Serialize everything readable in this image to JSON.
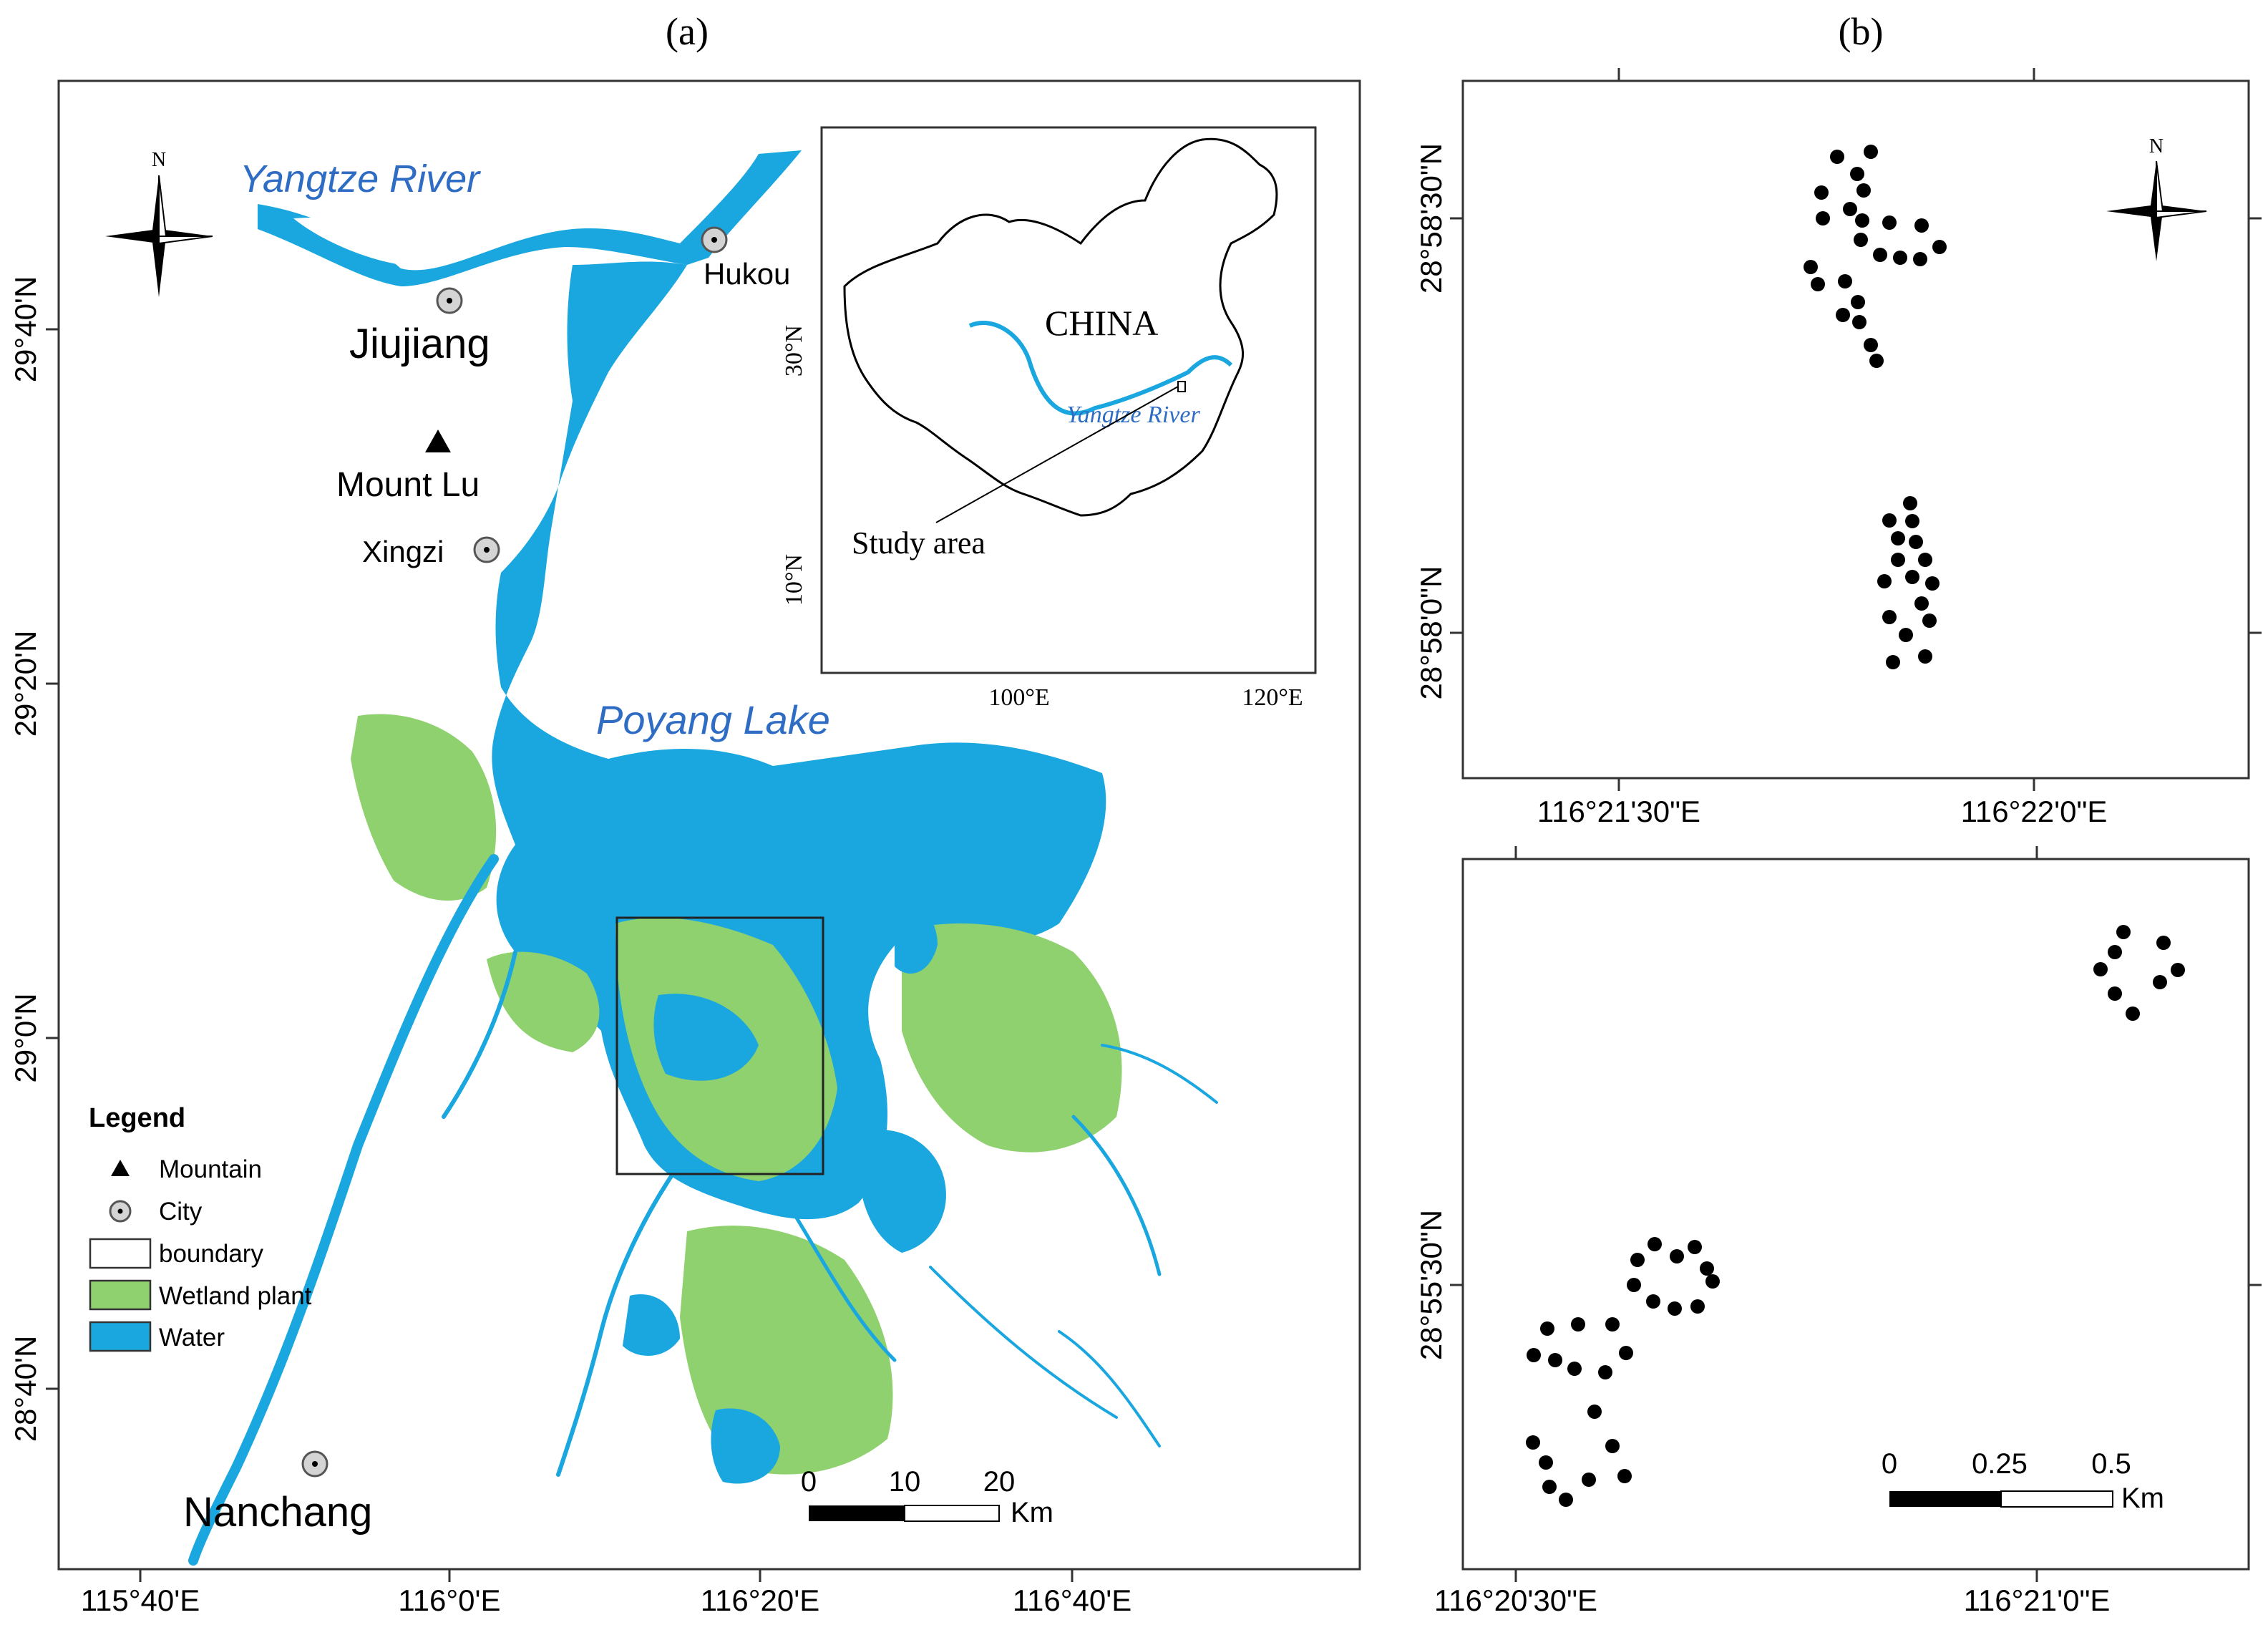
{
  "panel_a": {
    "label": "(a)",
    "labels": {
      "yangtze": "Yangtze River",
      "poyang": "Poyang Lake",
      "hukou": "Hukou",
      "jiujiang": "Jiujiang",
      "mount_lu": "Mount Lu",
      "xingzi": "Xingzi",
      "nanchang": "Nanchang"
    },
    "north": "N",
    "lat_ticks": [
      "29°40'N",
      "29°20'N",
      "29°0'N",
      "28°40'N"
    ],
    "lon_ticks": [
      "115°40'E",
      "116°0'E",
      "116°20'E",
      "116°40'E"
    ],
    "legend": {
      "title": "Legend",
      "items": [
        {
          "label": "Mountain",
          "symbol": "triangle"
        },
        {
          "label": "City",
          "symbol": "circle-dot"
        },
        {
          "label": "boundary",
          "symbol": "box-outline"
        },
        {
          "label": "Wetland plant",
          "symbol": "box-green"
        },
        {
          "label": "Water",
          "symbol": "box-blue"
        }
      ]
    },
    "scale": {
      "ticks": [
        "0",
        "10",
        "20"
      ],
      "unit": "Km"
    },
    "inset": {
      "country": "CHINA",
      "river": "Yangtze River",
      "study_area": "Study area",
      "lat_ticks": [
        "30°N",
        "10°N"
      ],
      "lon_ticks": [
        "100°E",
        "120°E"
      ]
    }
  },
  "panel_b": {
    "label": "(b)",
    "north": "N",
    "top": {
      "lat_ticks": [
        "28°58'30\"N",
        "28°58'0\"N"
      ],
      "lon_ticks": [
        "116°21'30\"E",
        "116°22'0\"E"
      ]
    },
    "bottom": {
      "lat_ticks": [
        "28°55'30\"N"
      ],
      "lon_ticks": [
        "116°20'30\"E",
        "116°21'0\"E"
      ],
      "scale": {
        "ticks": [
          "0",
          "0.25",
          "0.5"
        ],
        "unit": "Km"
      }
    }
  },
  "colors": {
    "water": "#1aa7e0",
    "wetland": "#8fd16e",
    "river_label": "#2f6cc4",
    "city_fill": "#d4d4d4"
  },
  "icons": [
    "north-arrow-icon",
    "mountain-icon",
    "city-icon"
  ]
}
